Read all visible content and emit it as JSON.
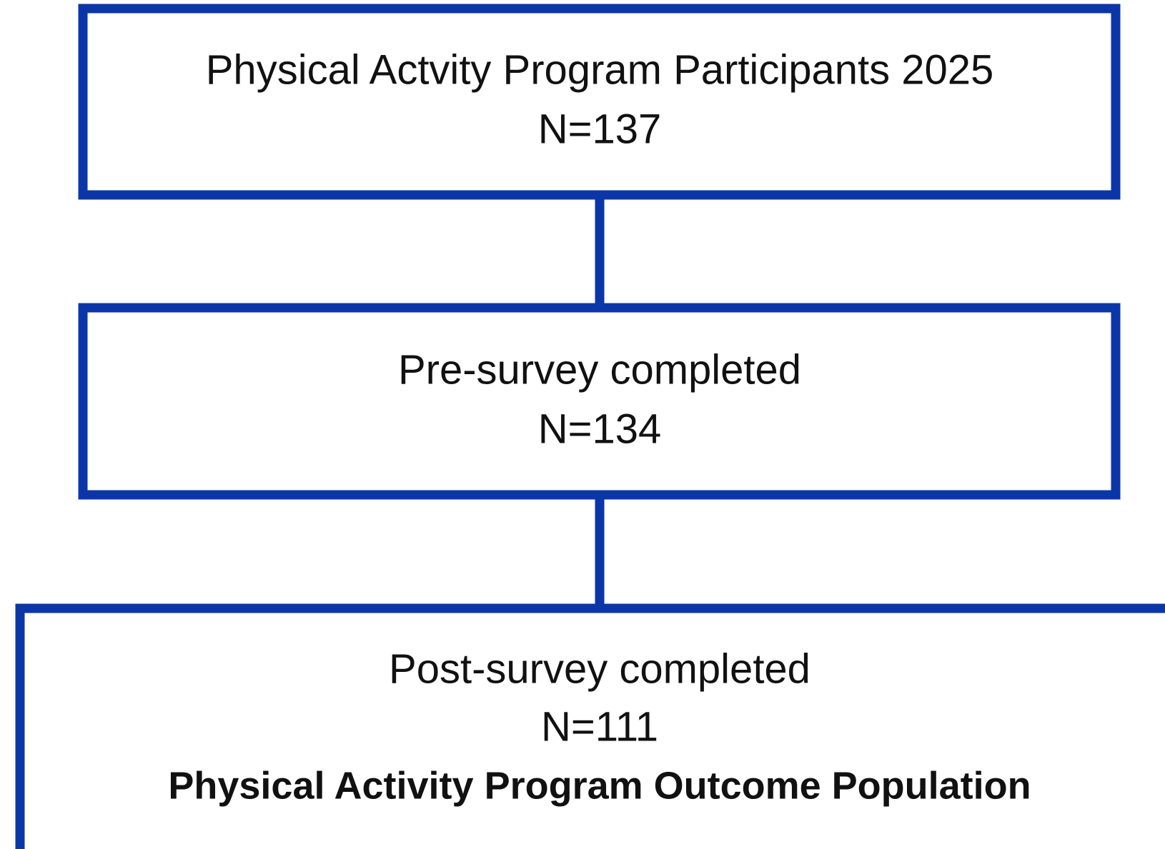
{
  "nodes": [
    {
      "lines": [
        "Physical Actvity Program Participants 2025",
        "N=137"
      ]
    },
    {
      "lines": [
        "Pre-survey completed",
        "N=134"
      ]
    },
    {
      "lines": [
        "Post-survey completed",
        "N=111"
      ],
      "note": "Physical Activity Program Outcome Population"
    }
  ]
}
